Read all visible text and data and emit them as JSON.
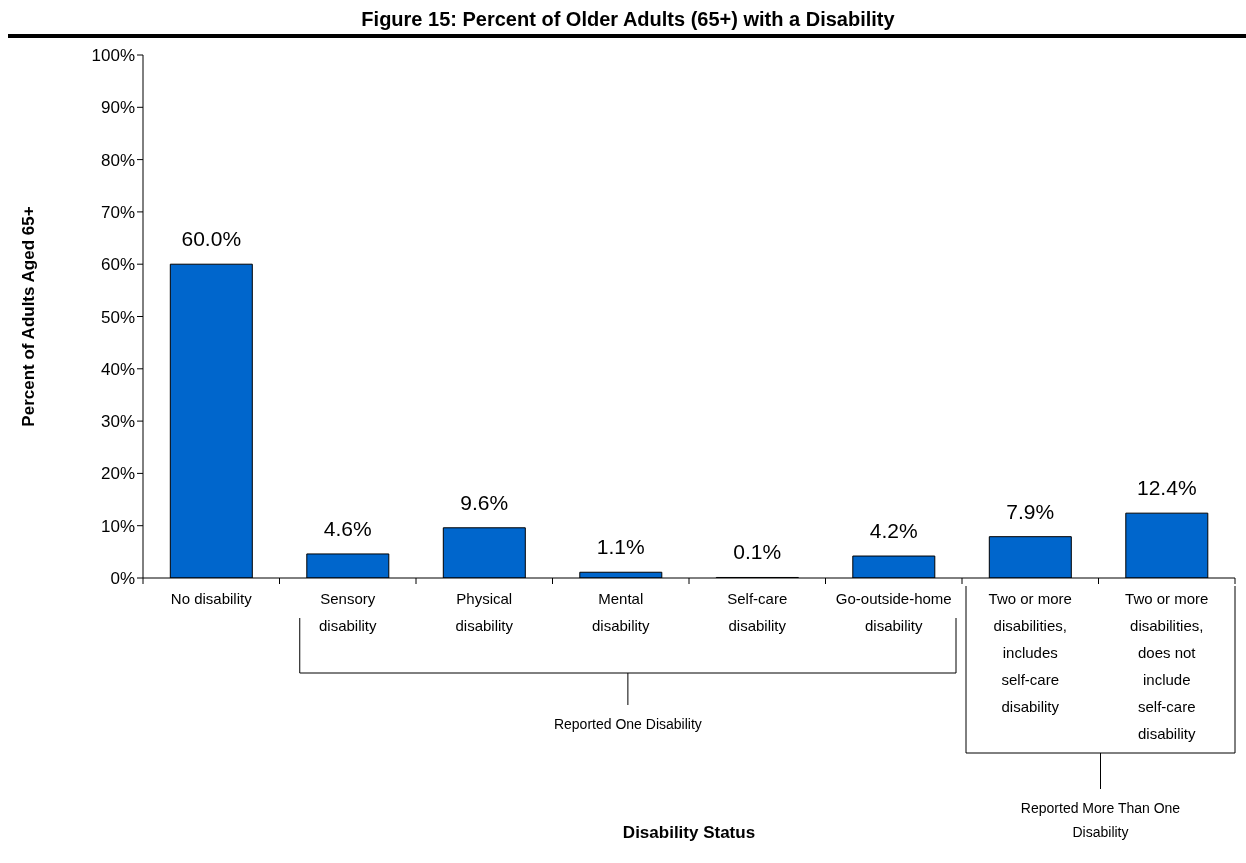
{
  "chart_data": {
    "type": "bar",
    "title": "Figure 15: Percent of Older Adults (65+) with a Disability",
    "xlabel": "Disability Status",
    "ylabel": "Percent of Adults Aged 65+",
    "categories": [
      "No disability",
      "Sensory disability",
      "Physical disability",
      "Mental disability",
      "Self-care disability",
      "Go-outside-home disability",
      "Two or more disabilities, includes self-care disability",
      "Two or more disabilities, does not include self-care disability"
    ],
    "values": [
      60.0,
      4.6,
      9.6,
      1.1,
      0.1,
      4.2,
      7.9,
      12.4
    ],
    "value_labels": [
      "60.0%",
      "4.6%",
      "9.6%",
      "1.1%",
      "0.1%",
      "4.2%",
      "7.9%",
      "12.4%"
    ],
    "color": "#0066cc",
    "ylim": [
      0,
      100
    ],
    "yticks": [
      {
        "value": 0,
        "label": "0%"
      },
      {
        "value": 10,
        "label": "10%"
      },
      {
        "value": 20,
        "label": "20%"
      },
      {
        "value": 30,
        "label": "30%"
      },
      {
        "value": 40,
        "label": "40%"
      },
      {
        "value": 50,
        "label": "50%"
      },
      {
        "value": 60,
        "label": "60%"
      },
      {
        "value": 70,
        "label": "70%"
      },
      {
        "value": 80,
        "label": "80%"
      },
      {
        "value": 90,
        "label": "90%"
      },
      {
        "value": 100,
        "label": "100%"
      }
    ],
    "grid": false,
    "annotations": [
      "Reported One Disability",
      "Reported More Than One Disability"
    ]
  }
}
